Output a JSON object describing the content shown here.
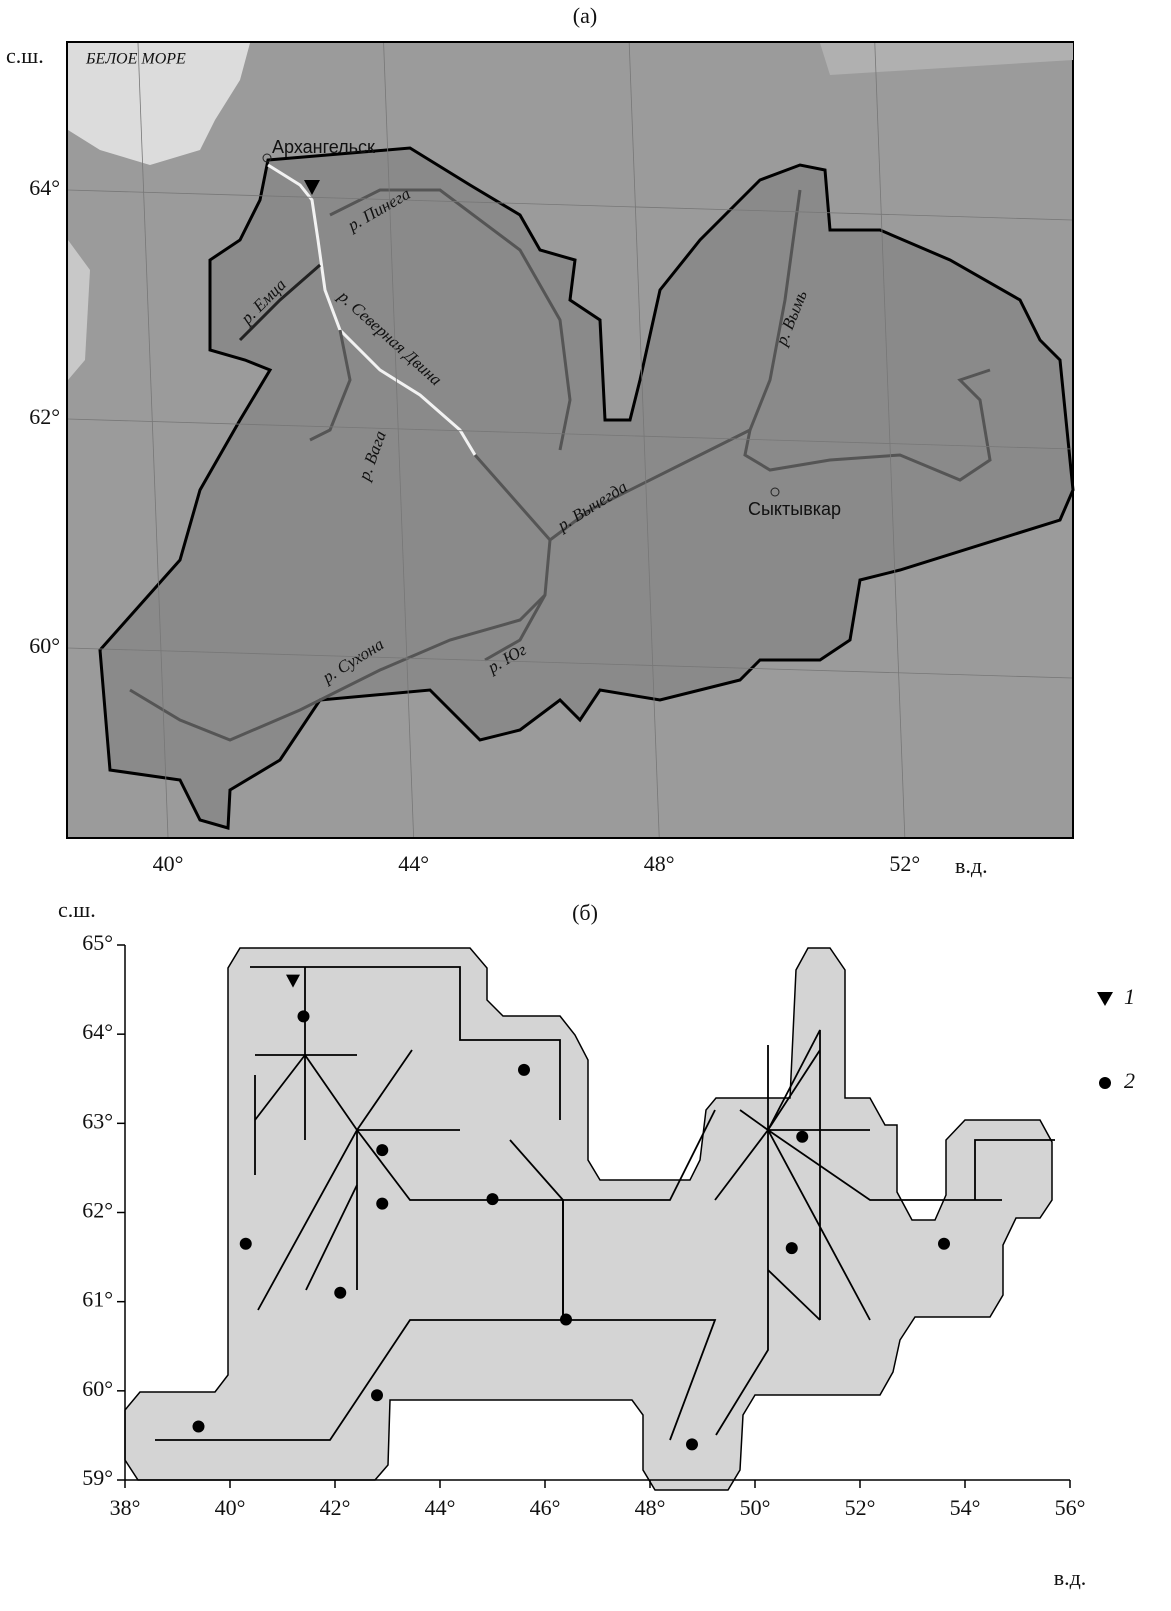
{
  "panel_a": {
    "label": "(а)",
    "lat_axis_label": "с.ш.",
    "lon_axis_label": "в.д.",
    "sea_label": "БЕЛОЕ МОРЕ",
    "places": [
      "Архангельск",
      "Сыктывкар"
    ],
    "rivers": [
      "р. Пинега",
      "р. Емца",
      "р. Северная Двина",
      "р. Вага",
      "р. Вычегда",
      "р. Вымь",
      "р. Сухона",
      "р. Юг"
    ],
    "lat_ticks": [
      {
        "value": 64,
        "label": "64°"
      },
      {
        "value": 62,
        "label": "62°"
      },
      {
        "value": 60,
        "label": "60°"
      }
    ],
    "lon_ticks": [
      {
        "value": 40,
        "label": "40°"
      },
      {
        "value": 44,
        "label": "44°"
      },
      {
        "value": 48,
        "label": "48°"
      },
      {
        "value": 52,
        "label": "52°"
      }
    ]
  },
  "panel_b": {
    "label": "(б)",
    "lat_axis_label": "с.ш.",
    "lon_axis_label": "в.д.",
    "xlim": [
      38,
      56
    ],
    "ylim": [
      59,
      65
    ],
    "xticks": [
      {
        "value": 38,
        "label": "38°"
      },
      {
        "value": 40,
        "label": "40°"
      },
      {
        "value": 42,
        "label": "42°"
      },
      {
        "value": 44,
        "label": "44°"
      },
      {
        "value": 46,
        "label": "46°"
      },
      {
        "value": 48,
        "label": "48°"
      },
      {
        "value": 50,
        "label": "50°"
      },
      {
        "value": 52,
        "label": "52°"
      },
      {
        "value": 54,
        "label": "54°"
      },
      {
        "value": 56,
        "label": "56°"
      }
    ],
    "yticks": [
      {
        "value": 59,
        "label": "59°"
      },
      {
        "value": 60,
        "label": "60°"
      },
      {
        "value": 61,
        "label": "61°"
      },
      {
        "value": 62,
        "label": "62°"
      },
      {
        "value": 63,
        "label": "63°"
      },
      {
        "value": 64,
        "label": "64°"
      },
      {
        "value": 65,
        "label": "65°"
      }
    ],
    "gauge": {
      "x": [
        41.2
      ],
      "y": [
        64.6
      ]
    },
    "stations": {
      "x": [
        41.4,
        45.6,
        42.9,
        42.9,
        45.0,
        40.3,
        42.1,
        46.4,
        42.8,
        39.4,
        50.9,
        50.7,
        53.6,
        48.8
      ],
      "y": [
        64.2,
        63.6,
        62.7,
        62.1,
        62.15,
        61.65,
        61.1,
        60.8,
        59.95,
        59.6,
        62.85,
        61.6,
        61.65,
        59.4
      ]
    },
    "legend": [
      "1",
      "2"
    ]
  }
}
